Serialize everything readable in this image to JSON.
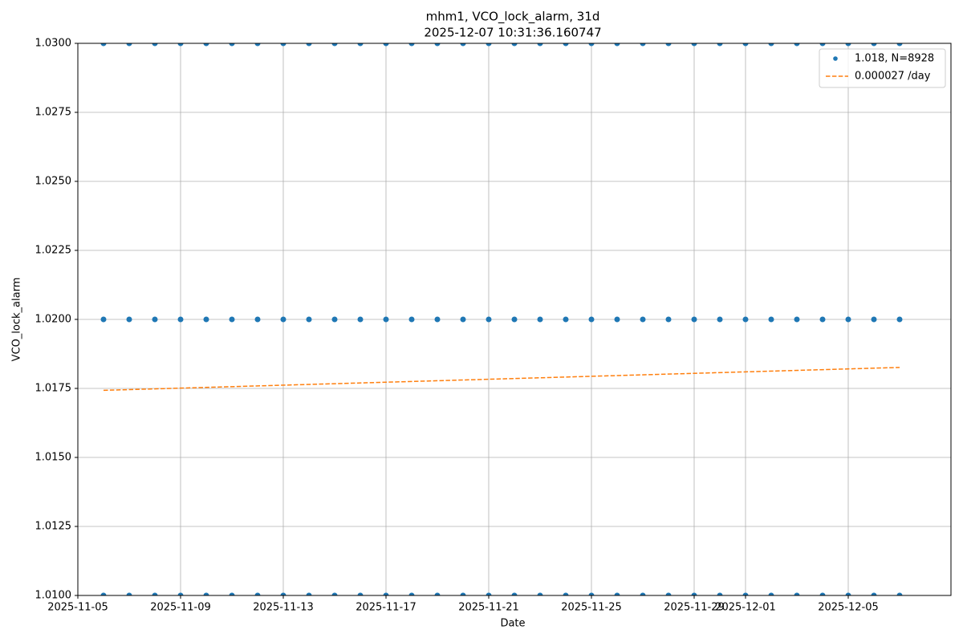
{
  "chart_data": {
    "type": "scatter",
    "title": "mhm1, VCO_lock_alarm, 31d",
    "subtitle": "2025-12-07 10:31:36.160747",
    "x_label": "Date",
    "y_label": "VCO_lock_alarm",
    "xlim": [
      "2025-11-05",
      "2025-12-09"
    ],
    "xticks": [
      "2025-11-05",
      "2025-11-09",
      "2025-11-13",
      "2025-11-17",
      "2025-11-21",
      "2025-11-25",
      "2025-11-29",
      "2025-12-01",
      "2025-12-05"
    ],
    "ylim": [
      1.01,
      1.03
    ],
    "yticks": [
      {
        "value": 1.01,
        "label": "1.0100"
      },
      {
        "value": 1.0125,
        "label": "1.0125"
      },
      {
        "value": 1.015,
        "label": "1.0150"
      },
      {
        "value": 1.0175,
        "label": "1.0175"
      },
      {
        "value": 1.02,
        "label": "1.0200"
      },
      {
        "value": 1.0225,
        "label": "1.0225"
      },
      {
        "value": 1.025,
        "label": "1.0250"
      },
      {
        "value": 1.0275,
        "label": "1.0275"
      },
      {
        "value": 1.03,
        "label": "1.0300"
      }
    ],
    "grid": true,
    "legend": "upper right",
    "series": [
      {
        "name": "1.018, N=8928",
        "color": "#1f77b4",
        "marker": "o",
        "x": [
          "2025-11-06",
          "2025-11-07",
          "2025-11-08",
          "2025-11-09",
          "2025-11-10",
          "2025-11-11",
          "2025-11-12",
          "2025-11-13",
          "2025-11-14",
          "2025-11-15",
          "2025-11-16",
          "2025-11-17",
          "2025-11-18",
          "2025-11-19",
          "2025-11-20",
          "2025-11-21",
          "2025-11-22",
          "2025-11-23",
          "2025-11-24",
          "2025-11-25",
          "2025-11-26",
          "2025-11-27",
          "2025-11-28",
          "2025-11-29",
          "2025-11-30",
          "2025-12-01",
          "2025-12-02",
          "2025-12-03",
          "2025-12-04",
          "2025-12-05",
          "2025-12-06",
          "2025-12-07",
          "2025-11-06",
          "2025-11-07",
          "2025-11-08",
          "2025-11-09",
          "2025-11-10",
          "2025-11-11",
          "2025-11-12",
          "2025-11-13",
          "2025-11-14",
          "2025-11-15",
          "2025-11-16",
          "2025-11-17",
          "2025-11-18",
          "2025-11-19",
          "2025-11-20",
          "2025-11-21",
          "2025-11-22",
          "2025-11-23",
          "2025-11-24",
          "2025-11-25",
          "2025-11-26",
          "2025-11-27",
          "2025-11-28",
          "2025-11-29",
          "2025-11-30",
          "2025-12-01",
          "2025-12-02",
          "2025-12-03",
          "2025-12-04",
          "2025-12-05",
          "2025-12-06",
          "2025-12-07",
          "2025-11-06",
          "2025-11-07",
          "2025-11-08",
          "2025-11-09",
          "2025-11-10",
          "2025-11-11",
          "2025-11-12",
          "2025-11-13",
          "2025-11-14",
          "2025-11-15",
          "2025-11-16",
          "2025-11-17",
          "2025-11-18",
          "2025-11-19",
          "2025-11-20",
          "2025-11-21",
          "2025-11-22",
          "2025-11-23",
          "2025-11-24",
          "2025-11-25",
          "2025-11-26",
          "2025-11-27",
          "2025-11-28",
          "2025-11-29",
          "2025-11-30",
          "2025-12-01",
          "2025-12-02",
          "2025-12-03",
          "2025-12-04",
          "2025-12-05",
          "2025-12-06",
          "2025-12-07"
        ],
        "values": [
          1.01,
          1.01,
          1.01,
          1.01,
          1.01,
          1.01,
          1.01,
          1.01,
          1.01,
          1.01,
          1.01,
          1.01,
          1.01,
          1.01,
          1.01,
          1.01,
          1.01,
          1.01,
          1.01,
          1.01,
          1.01,
          1.01,
          1.01,
          1.01,
          1.01,
          1.01,
          1.01,
          1.01,
          1.01,
          1.01,
          1.01,
          1.01,
          1.02,
          1.02,
          1.02,
          1.02,
          1.02,
          1.02,
          1.02,
          1.02,
          1.02,
          1.02,
          1.02,
          1.02,
          1.02,
          1.02,
          1.02,
          1.02,
          1.02,
          1.02,
          1.02,
          1.02,
          1.02,
          1.02,
          1.02,
          1.02,
          1.02,
          1.02,
          1.02,
          1.02,
          1.02,
          1.02,
          1.02,
          1.02,
          1.03,
          1.03,
          1.03,
          1.03,
          1.03,
          1.03,
          1.03,
          1.03,
          1.03,
          1.03,
          1.03,
          1.03,
          1.03,
          1.03,
          1.03,
          1.03,
          1.03,
          1.03,
          1.03,
          1.03,
          1.03,
          1.03,
          1.03,
          1.03,
          1.03,
          1.03,
          1.03,
          1.03,
          1.03,
          1.03,
          1.03,
          1.03
        ]
      },
      {
        "name": "0.000027 /day",
        "color": "#ff7f0e",
        "line_style": "dashed",
        "x": [
          "2025-11-06",
          "2025-12-07"
        ],
        "values": [
          1.01743,
          1.01826
        ]
      }
    ]
  }
}
